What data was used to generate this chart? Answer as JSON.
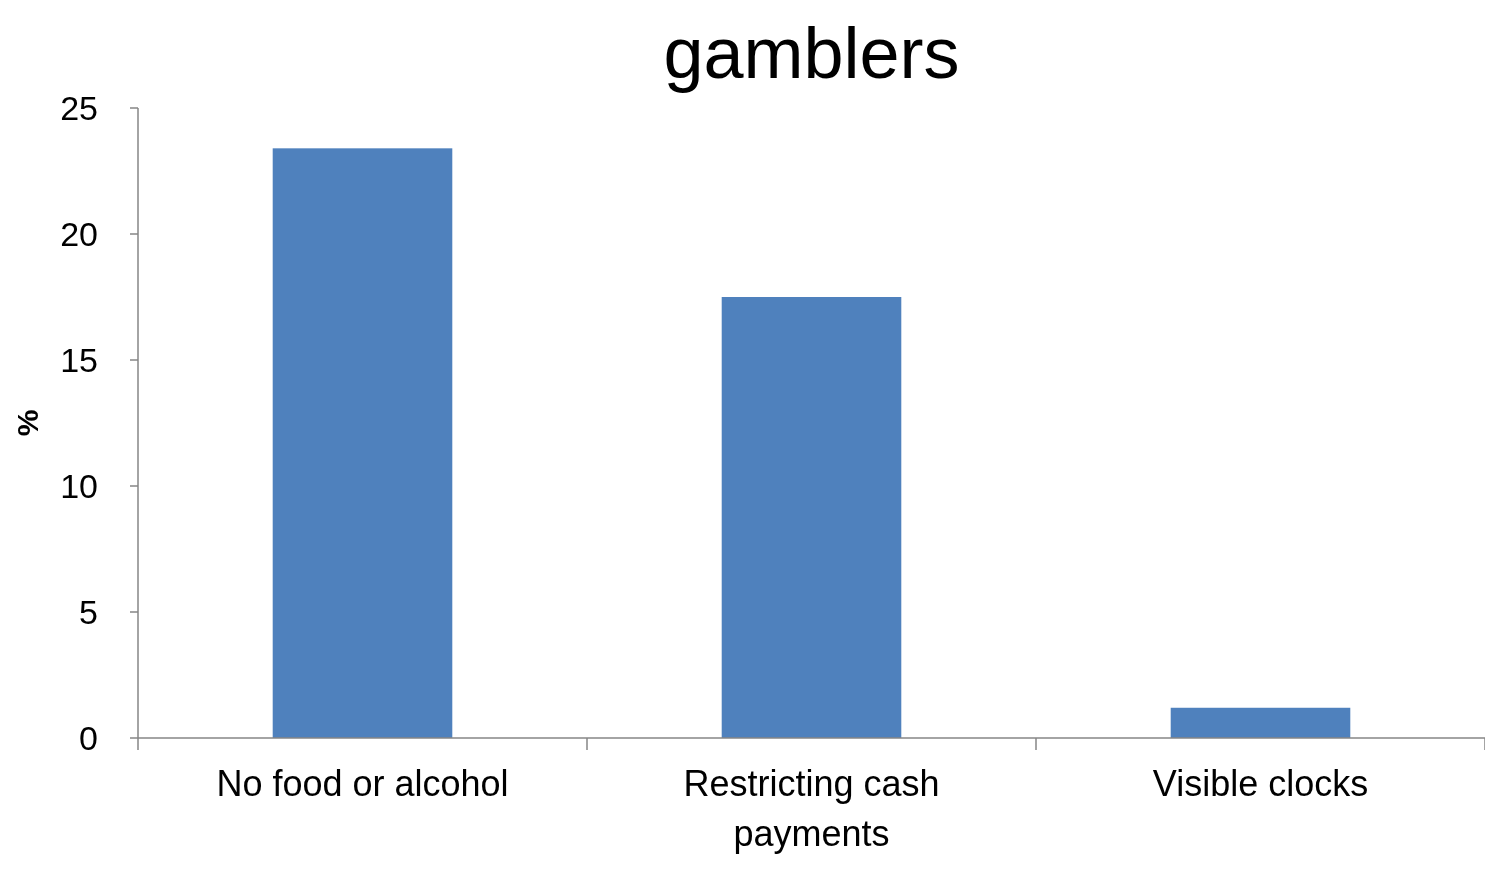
{
  "chart_data": {
    "type": "bar",
    "title": "gamblers",
    "ylabel": "%",
    "categories": [
      "No food or alcohol",
      "Restricting cash payments",
      "Visible clocks"
    ],
    "values": [
      23.4,
      17.5,
      1.2
    ],
    "color": "#4f81bd",
    "ylim": [
      0,
      25
    ],
    "yticks": [
      0,
      5,
      10,
      15,
      20,
      25
    ],
    "grid": false
  }
}
